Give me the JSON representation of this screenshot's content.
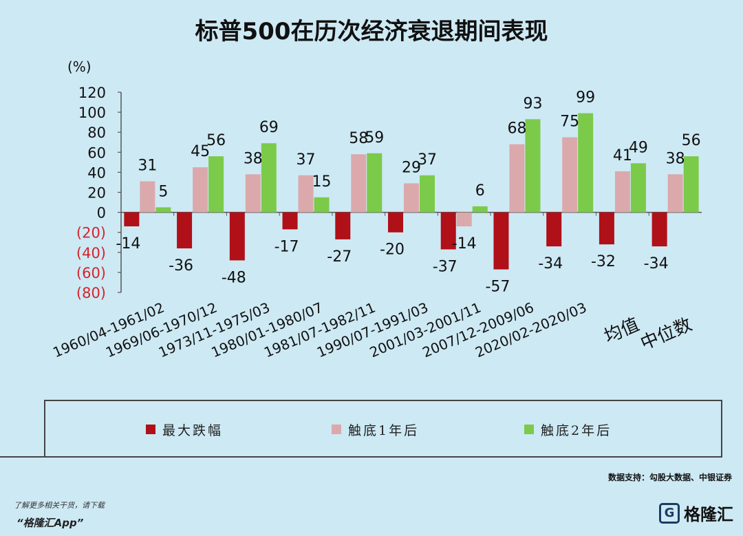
{
  "chart_data": {
    "type": "bar",
    "title": "标普500在历次经济衰退期间表现",
    "ylabel": "(%)",
    "ylim": [
      -80,
      120
    ],
    "yticks": [
      "120",
      "100",
      "80",
      "60",
      "40",
      "20",
      "0",
      "(20)",
      "(40)",
      "(60)",
      "(80)"
    ],
    "ytick_values": [
      120,
      100,
      80,
      60,
      40,
      20,
      0,
      -20,
      -40,
      -60,
      -80
    ],
    "categories": [
      "1960/04-1961/02",
      "1969/06-1970/12",
      "1973/11-1975/03",
      "1980/01-1980/07",
      "1981/07-1982/11",
      "1990/07-1991/03",
      "2001/03-2001/11",
      "2007/12-2009/06",
      "2020/02-2020/03",
      "均值",
      "中位数"
    ],
    "series": [
      {
        "name": "最大跌幅",
        "color": "#b01018",
        "values": [
          -14,
          -36,
          -48,
          -17,
          -27,
          -20,
          -37,
          -57,
          -34,
          -32,
          -34
        ]
      },
      {
        "name": "触底1年后",
        "color": "#dba9ac",
        "values": [
          31,
          45,
          38,
          37,
          58,
          29,
          -14,
          68,
          75,
          41,
          38
        ]
      },
      {
        "name": "触底2年后",
        "color": "#7cca4a",
        "values": [
          5,
          56,
          69,
          15,
          59,
          37,
          6,
          93,
          99,
          49,
          56
        ]
      }
    ],
    "data_labels": [
      [
        "-14",
        "-36",
        "-48",
        "-17",
        "-27",
        "-20",
        "-37",
        "-57",
        "-34",
        "-32",
        "-34"
      ],
      [
        "31",
        "45",
        "38",
        "37",
        "58",
        "29",
        "-14",
        "68",
        "75",
        "41",
        "38"
      ],
      [
        "5",
        "56",
        "69",
        "15",
        "59",
        "37",
        "6",
        "93",
        "99",
        "49",
        "56"
      ]
    ],
    "legend_position": "bottom",
    "grid": false
  },
  "legend": {
    "item1": "最大跌幅",
    "item2": "触底1年后",
    "item3": "触底2年后"
  },
  "source": "数据支持：勾股大数据、中银证券",
  "footer": {
    "note": "了解更多相关干货，请下载",
    "app": "“格隆汇App”",
    "brand": "格隆汇",
    "brand_logo": "G"
  }
}
